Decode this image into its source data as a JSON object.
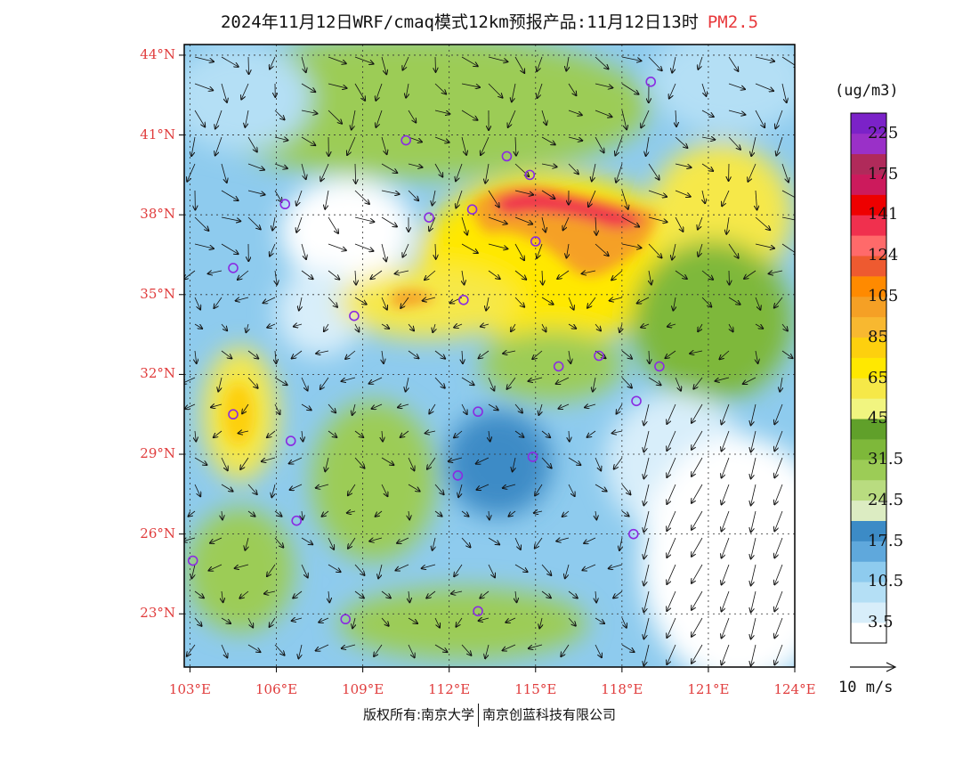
{
  "title": {
    "main": "2024年11月12日WRF/cmaq模式12km预报产品:11月12日13时",
    "pollutant": "PM2.5"
  },
  "map": {
    "lat_labels": [
      "44°N",
      "41°N",
      "38°N",
      "35°N",
      "32°N",
      "29°N",
      "26°N",
      "23°N"
    ],
    "lat_values": [
      44,
      41,
      38,
      35,
      32,
      29,
      26,
      23
    ],
    "lon_labels": [
      "103°E",
      "106°E",
      "109°E",
      "112°E",
      "115°E",
      "118°E",
      "121°E",
      "124°E"
    ],
    "lon_values": [
      103,
      106,
      109,
      112,
      115,
      118,
      121,
      124
    ],
    "lon_range": [
      102.8,
      124
    ],
    "lat_range": [
      21,
      44.4
    ],
    "stations": [
      [
        119.0,
        43.0
      ],
      [
        110.5,
        40.8
      ],
      [
        114.0,
        40.2
      ],
      [
        114.8,
        39.5
      ],
      [
        106.3,
        38.4
      ],
      [
        111.3,
        37.9
      ],
      [
        112.8,
        38.2
      ],
      [
        115.0,
        37.0
      ],
      [
        104.5,
        36.0
      ],
      [
        108.7,
        34.2
      ],
      [
        112.5,
        34.8
      ],
      [
        115.8,
        32.3
      ],
      [
        117.2,
        32.7
      ],
      [
        119.3,
        32.3
      ],
      [
        118.5,
        31.0
      ],
      [
        104.5,
        30.5
      ],
      [
        113.0,
        30.6
      ],
      [
        106.5,
        29.5
      ],
      [
        112.3,
        28.2
      ],
      [
        114.9,
        28.9
      ],
      [
        106.7,
        26.5
      ],
      [
        118.4,
        26.0
      ],
      [
        103.1,
        25.0
      ],
      [
        108.4,
        22.8
      ],
      [
        113.0,
        23.1
      ]
    ]
  },
  "legend": {
    "unit": "(ug/m3)",
    "colors": [
      "#ffffff",
      "#d8eefa",
      "#b4dff5",
      "#8ecbee",
      "#5fa8dc",
      "#3c8bc6",
      "#dcecc2",
      "#b9dc80",
      "#9ccc56",
      "#7eb83a",
      "#60a02a",
      "#f1f580",
      "#f6e848",
      "#ffe800",
      "#fdd00e",
      "#f8b830",
      "#f5a025",
      "#ff8a00",
      "#ee5a30",
      "#ff6a6a",
      "#f0304e",
      "#ee0000",
      "#cc1a5c",
      "#b02a5a",
      "#9a30c8",
      "#7b22c8"
    ],
    "labels": [
      "3.5",
      "10.5",
      "17.5",
      "24.5",
      "31.5",
      "45",
      "65",
      "85",
      "105",
      "124",
      "141",
      "175",
      "225"
    ],
    "label_levels": [
      1,
      3,
      5,
      7,
      9,
      11,
      13,
      15,
      17,
      19,
      21,
      23,
      25
    ]
  },
  "wind_reference": {
    "label": "10 m/s"
  },
  "footer": {
    "left": "版权所有:南京大学",
    "right": "南京创蓝科技有限公司"
  }
}
